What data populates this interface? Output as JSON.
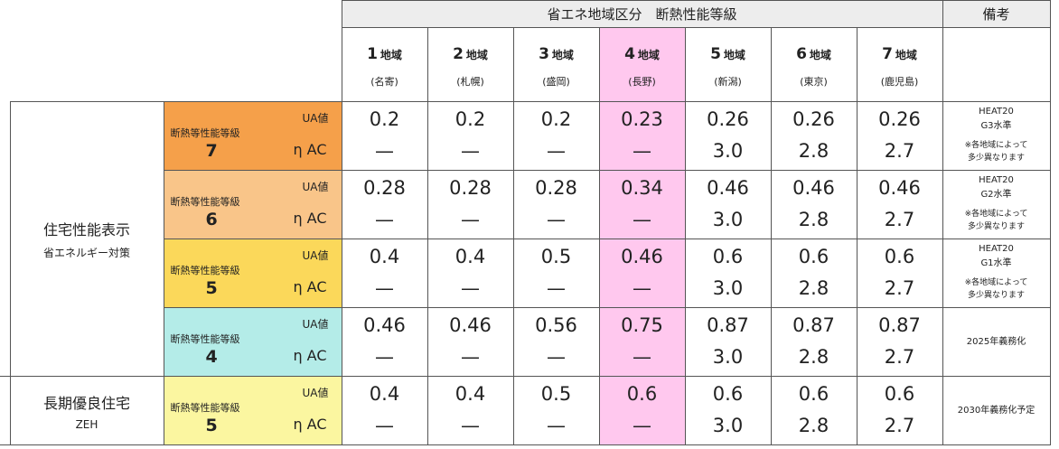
{
  "header": {
    "title": "省エネ地域区分　断熱性能等級",
    "remarks": "備考"
  },
  "regions": [
    {
      "num": "1",
      "suffix": "地域",
      "city": "(名寄)"
    },
    {
      "num": "2",
      "suffix": "地域",
      "city": "(札幌)"
    },
    {
      "num": "3",
      "suffix": "地域",
      "city": "(盛岡)"
    },
    {
      "num": "4",
      "suffix": "地域",
      "city": "(長野)"
    },
    {
      "num": "5",
      "suffix": "地域",
      "city": "(新潟)"
    },
    {
      "num": "6",
      "suffix": "地域",
      "city": "(東京)"
    },
    {
      "num": "7",
      "suffix": "地域",
      "city": "(鹿児島)"
    }
  ],
  "groups": [
    {
      "main": "住宅性能表示",
      "sub": "省エネルギー対策"
    },
    {
      "main": "長期優良住宅",
      "sub": "ZEH"
    }
  ],
  "labels": {
    "grade_label": "断熱等性能等級",
    "ua": "UA値",
    "eta": "η AC"
  },
  "rows": [
    {
      "grade": "7",
      "color": "#f5a04a",
      "ua": [
        "0.2",
        "0.2",
        "0.2",
        "0.23",
        "0.26",
        "0.26",
        "0.26"
      ],
      "eta": [
        "—",
        "—",
        "—",
        "—",
        "3.0",
        "2.8",
        "2.7"
      ],
      "note1": "HEAT20\nG3水準",
      "note2": "※各地域によって\n多少異なります"
    },
    {
      "grade": "6",
      "color": "#f9c589",
      "ua": [
        "0.28",
        "0.28",
        "0.28",
        "0.34",
        "0.46",
        "0.46",
        "0.46"
      ],
      "eta": [
        "—",
        "—",
        "—",
        "—",
        "3.0",
        "2.8",
        "2.7"
      ],
      "note1": "HEAT20\nG2水準",
      "note2": "※各地域によって\n多少異なります"
    },
    {
      "grade": "5",
      "color": "#fbd85a",
      "ua": [
        "0.4",
        "0.4",
        "0.5",
        "0.46",
        "0.6",
        "0.6",
        "0.6"
      ],
      "eta": [
        "—",
        "—",
        "—",
        "—",
        "3.0",
        "2.8",
        "2.7"
      ],
      "note1": "HEAT20\nG1水準",
      "note2": "※各地域によって\n多少異なります"
    },
    {
      "grade": "4",
      "color": "#b4ece8",
      "ua": [
        "0.46",
        "0.46",
        "0.56",
        "0.75",
        "0.87",
        "0.87",
        "0.87"
      ],
      "eta": [
        "—",
        "—",
        "—",
        "—",
        "3.0",
        "2.8",
        "2.7"
      ],
      "note": "2025年義務化"
    },
    {
      "grade": "5",
      "color": "#fbf6a0",
      "ua": [
        "0.4",
        "0.4",
        "0.5",
        "0.6",
        "0.6",
        "0.6",
        "0.6"
      ],
      "eta": [
        "—",
        "—",
        "—",
        "—",
        "3.0",
        "2.8",
        "2.7"
      ],
      "note": "2030年義務化予定"
    }
  ]
}
